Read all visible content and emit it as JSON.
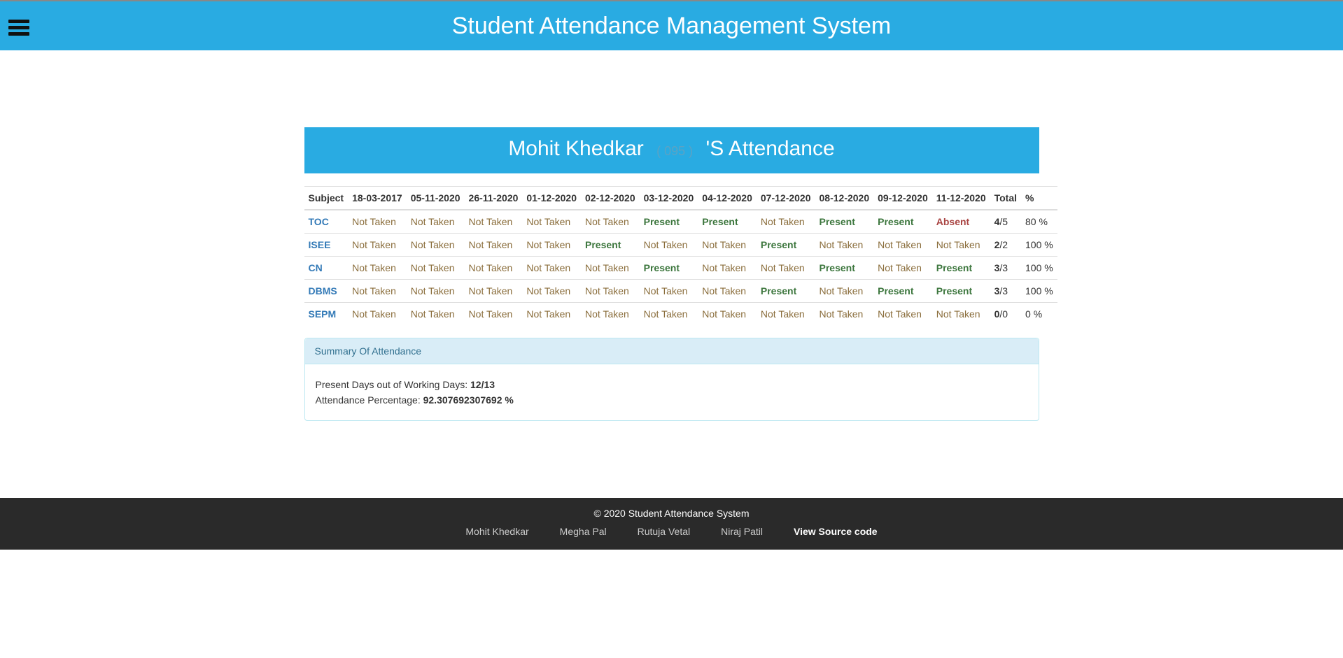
{
  "header": {
    "title": "Student Attendance Management System"
  },
  "student": {
    "name": "Mohit Khedkar",
    "id": "( 095 )",
    "suffix": "'S Attendance"
  },
  "table": {
    "columns": [
      "Subject",
      "18-03-2017",
      "05-11-2020",
      "26-11-2020",
      "01-12-2020",
      "02-12-2020",
      "03-12-2020",
      "04-12-2020",
      "07-12-2020",
      "08-12-2020",
      "09-12-2020",
      "11-12-2020",
      "Total",
      "%"
    ],
    "rows": [
      {
        "subject": "TOC",
        "cells": [
          "Not Taken",
          "Not Taken",
          "Not Taken",
          "Not Taken",
          "Not Taken",
          "Present",
          "Present",
          "Not Taken",
          "Present",
          "Present",
          "Absent"
        ],
        "present": "4",
        "total": "/5",
        "pct": "80 %"
      },
      {
        "subject": "ISEE",
        "cells": [
          "Not Taken",
          "Not Taken",
          "Not Taken",
          "Not Taken",
          "Present",
          "Not Taken",
          "Not Taken",
          "Present",
          "Not Taken",
          "Not Taken",
          "Not Taken"
        ],
        "present": "2",
        "total": "/2",
        "pct": "100 %"
      },
      {
        "subject": "CN",
        "cells": [
          "Not Taken",
          "Not Taken",
          "Not Taken",
          "Not Taken",
          "Not Taken",
          "Present",
          "Not Taken",
          "Not Taken",
          "Present",
          "Not Taken",
          "Present"
        ],
        "present": "3",
        "total": "/3",
        "pct": "100 %"
      },
      {
        "subject": "DBMS",
        "cells": [
          "Not Taken",
          "Not Taken",
          "Not Taken",
          "Not Taken",
          "Not Taken",
          "Not Taken",
          "Not Taken",
          "Present",
          "Not Taken",
          "Present",
          "Present"
        ],
        "present": "3",
        "total": "/3",
        "pct": "100 %"
      },
      {
        "subject": "SEPM",
        "cells": [
          "Not Taken",
          "Not Taken",
          "Not Taken",
          "Not Taken",
          "Not Taken",
          "Not Taken",
          "Not Taken",
          "Not Taken",
          "Not Taken",
          "Not Taken",
          "Not Taken"
        ],
        "present": "0",
        "total": "/0",
        "pct": "0 %"
      }
    ]
  },
  "summary": {
    "title": "Summary Of Attendance",
    "present_label": "Present Days out of Working Days: ",
    "present_value": "12/13",
    "pct_label": "Attendance Percentage: ",
    "pct_value": "92.307692307692 %"
  },
  "footer": {
    "copy": "© 2020 Student Attendance System",
    "links": [
      "Mohit Khedkar",
      "Megha Pal",
      "Rutuja Vetal",
      "Niraj Patil",
      "View Source code"
    ]
  },
  "colors": {
    "primary": "#29abe2",
    "present": "#3c763d",
    "absent": "#a94442",
    "nottaken": "#8a6d3b",
    "link": "#337ab7",
    "footer": "#2a2a2a"
  }
}
